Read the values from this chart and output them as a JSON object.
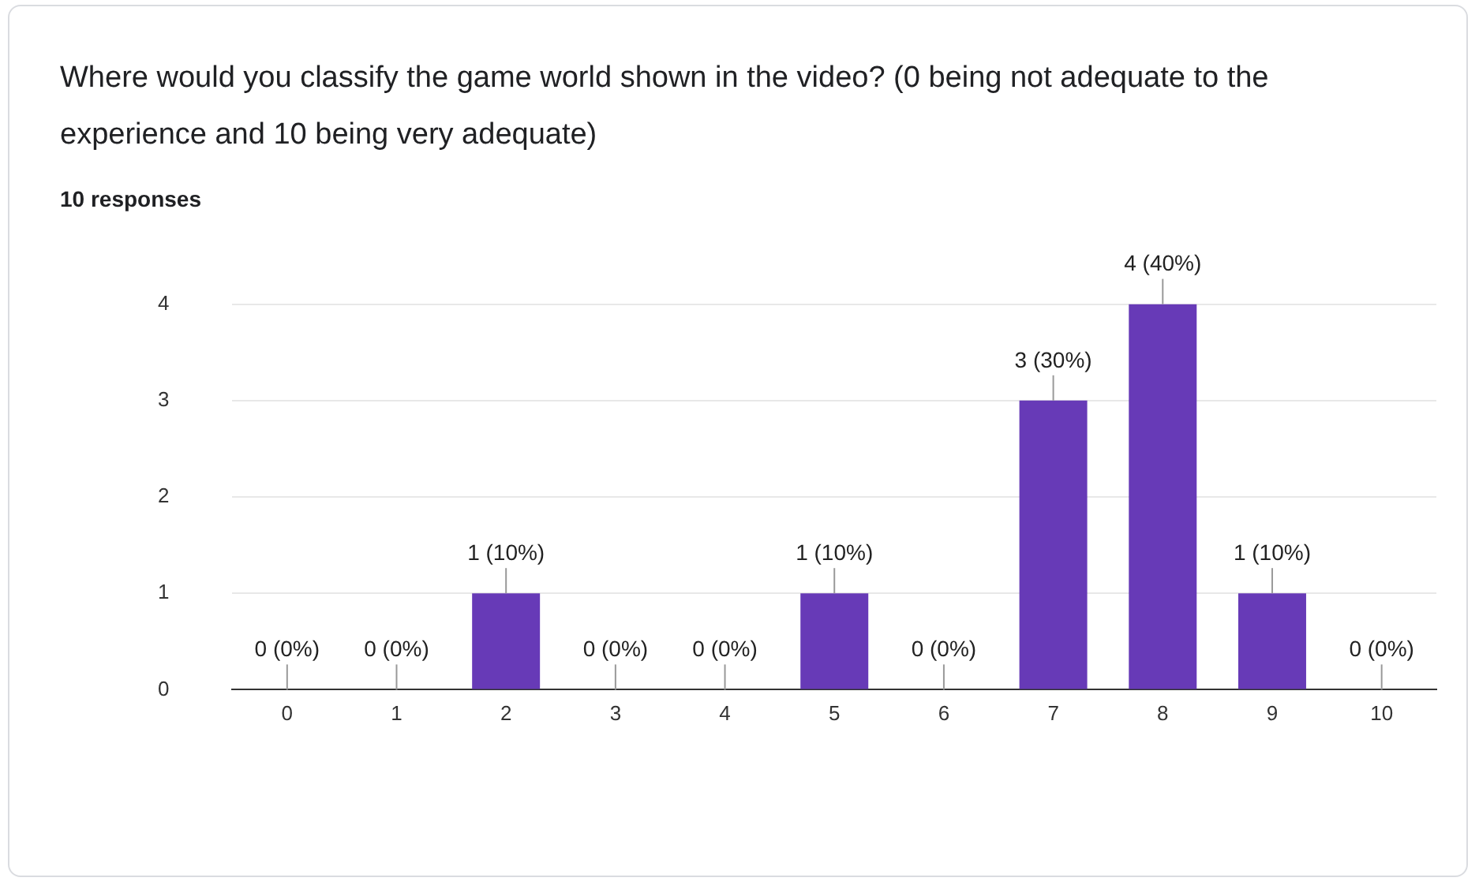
{
  "chart_data": {
    "type": "bar",
    "title": "Where would you classify the game world shown in the video? (0 being not adequate to the experience and 10 being very adequate)",
    "subtitle": "10 responses",
    "categories": [
      "0",
      "1",
      "2",
      "3",
      "4",
      "5",
      "6",
      "7",
      "8",
      "9",
      "10"
    ],
    "values": [
      0,
      0,
      1,
      0,
      0,
      1,
      0,
      3,
      4,
      1,
      0
    ],
    "value_labels": [
      "0 (0%)",
      "0 (0%)",
      "1 (10%)",
      "0 (0%)",
      "0 (0%)",
      "1 (10%)",
      "0 (0%)",
      "3 (30%)",
      "4 (40%)",
      "1 (10%)",
      "0 (0%)"
    ],
    "color": "#673ab7",
    "ylim": [
      0,
      4
    ],
    "yticks": [
      0,
      1,
      2,
      3,
      4
    ],
    "grid": "y",
    "legend": false
  }
}
